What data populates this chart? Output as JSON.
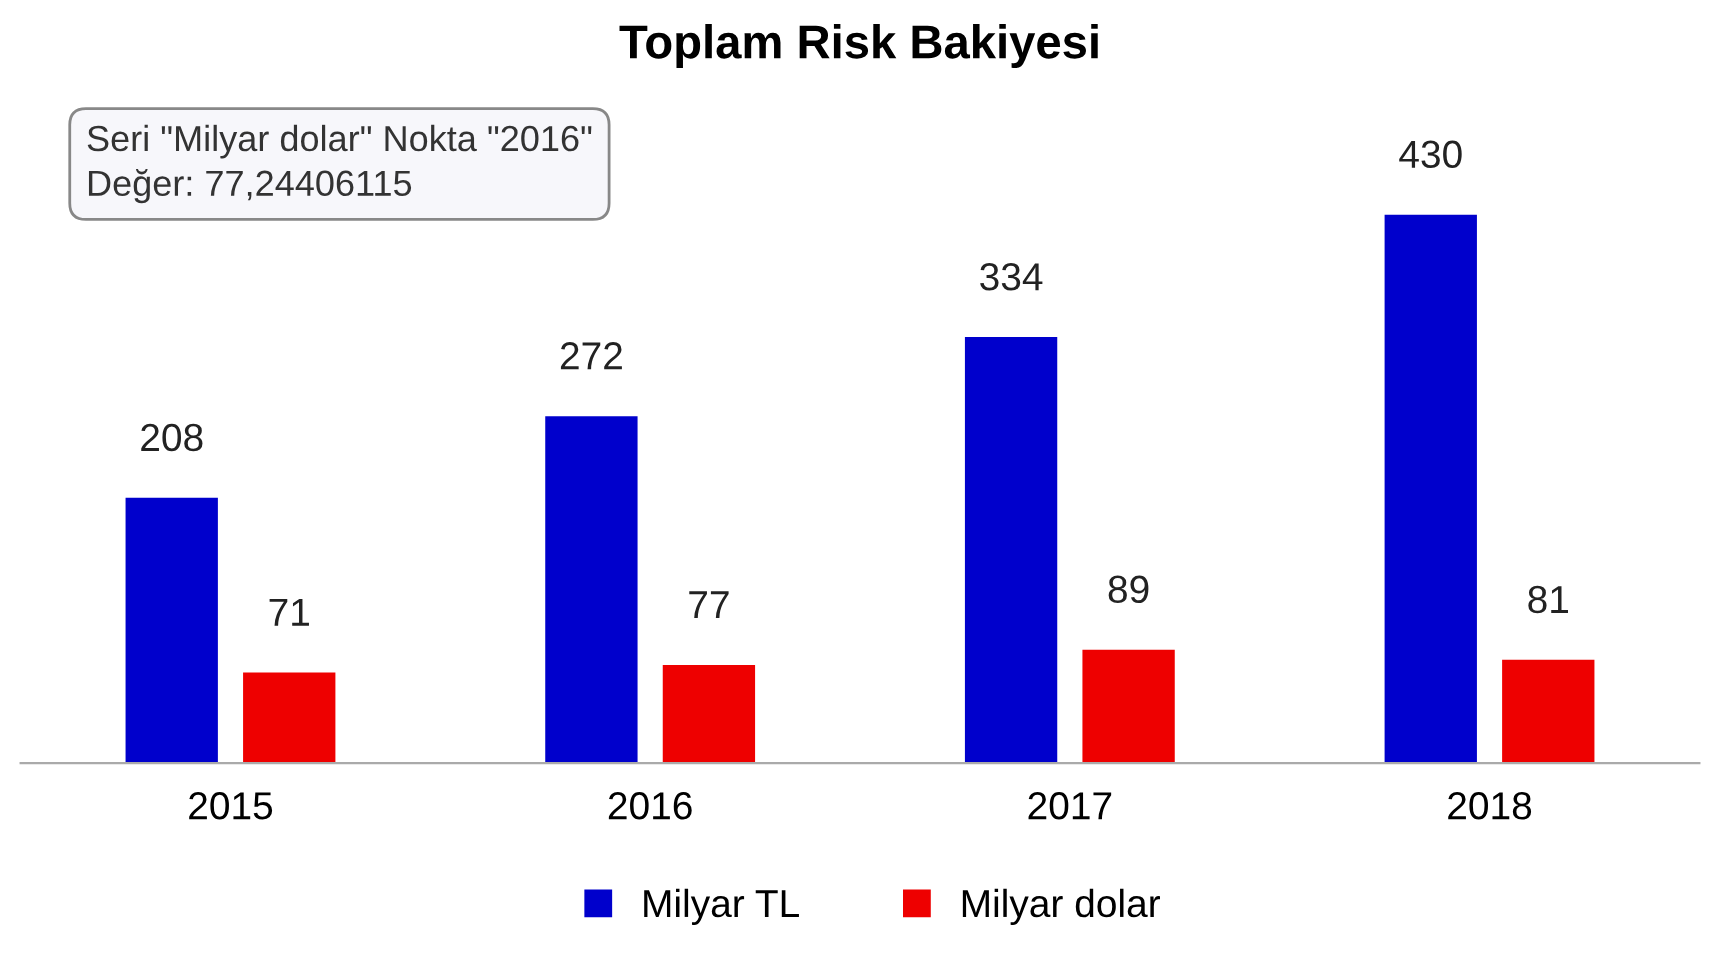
{
  "chart_data": {
    "type": "bar",
    "title": "Toplam Risk Bakiyesi",
    "categories": [
      "2015",
      "2016",
      "2017",
      "2018"
    ],
    "series": [
      {
        "name": "Milyar TL",
        "color": "#0000cc",
        "values": [
          208,
          272,
          334,
          430
        ]
      },
      {
        "name": "Milyar dolar",
        "color": "#ee0000",
        "values": [
          71,
          77,
          89,
          81
        ]
      }
    ],
    "data_labels": true,
    "grid": false,
    "legend": "bottom",
    "annotations": [
      "Seri \"Milyar dolar\" Nokta \"2016\"\nDeğer: 77,24406115"
    ]
  }
}
